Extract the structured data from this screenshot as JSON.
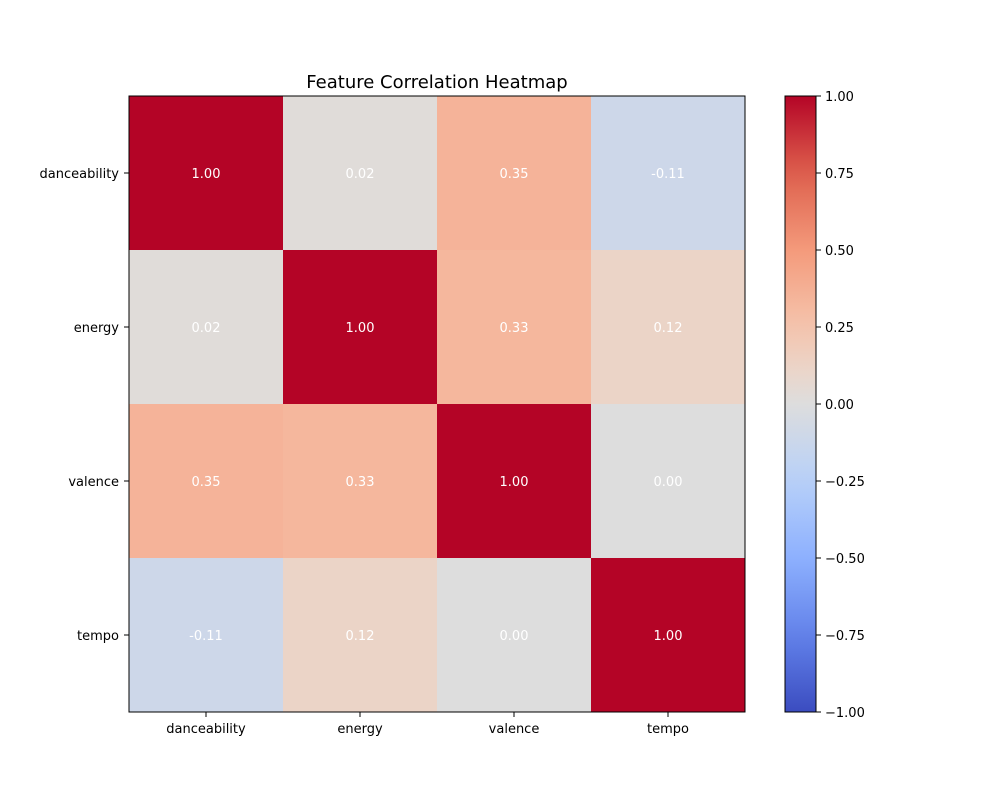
{
  "chart_data": {
    "type": "heatmap",
    "title": "Feature Correlation Heatmap",
    "xlabel": "",
    "ylabel": "",
    "x_categories": [
      "danceability",
      "energy",
      "valence",
      "tempo"
    ],
    "y_categories": [
      "danceability",
      "energy",
      "valence",
      "tempo"
    ],
    "values": [
      [
        1.0,
        0.02,
        0.35,
        -0.11
      ],
      [
        0.02,
        1.0,
        0.33,
        0.12
      ],
      [
        0.35,
        0.33,
        1.0,
        0.0
      ],
      [
        -0.11,
        0.12,
        0.0,
        1.0
      ]
    ],
    "value_format": "2 decimals",
    "colormap": "coolwarm",
    "color_range": [
      -1.0,
      1.0
    ],
    "colorbar_ticks": [
      "1.00",
      "0.75",
      "0.50",
      "0.25",
      "0.00",
      "−0.25",
      "−0.50",
      "−0.75",
      "−1.00"
    ],
    "colorbar_tick_values": [
      1.0,
      0.75,
      0.5,
      0.25,
      0.0,
      -0.25,
      -0.5,
      -0.75,
      -1.0
    ],
    "cell_label_color": "#ffffff",
    "grid": false,
    "legend": "colorbar right"
  }
}
